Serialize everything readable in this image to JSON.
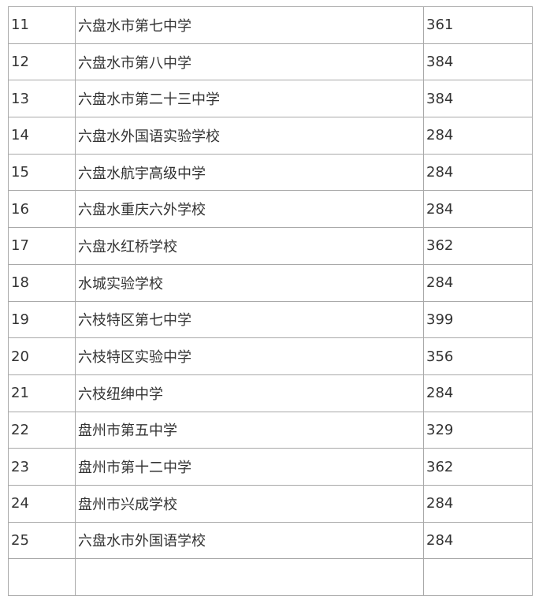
{
  "table": {
    "rows": [
      {
        "no": "11",
        "school": "六盘水市第七中学",
        "score": "361"
      },
      {
        "no": "12",
        "school": "六盘水市第八中学",
        "score": "384"
      },
      {
        "no": "13",
        "school": "六盘水市第二十三中学",
        "score": "384"
      },
      {
        "no": "14",
        "school": "六盘水外国语实验学校",
        "score": "284"
      },
      {
        "no": "15",
        "school": "六盘水航宇高级中学",
        "score": "284"
      },
      {
        "no": "16",
        "school": "六盘水重庆六外学校",
        "score": "284"
      },
      {
        "no": "17",
        "school": "六盘水红桥学校",
        "score": "362"
      },
      {
        "no": "18",
        "school": "水城实验学校",
        "score": "284"
      },
      {
        "no": "19",
        "school": "六枝特区第七中学",
        "score": "399"
      },
      {
        "no": "20",
        "school": "六枝特区实验中学",
        "score": "356"
      },
      {
        "no": "21",
        "school": "六枝纽绅中学",
        "score": "284"
      },
      {
        "no": "22",
        "school": "盘州市第五中学",
        "score": "329"
      },
      {
        "no": "23",
        "school": "盘州市第十二中学",
        "score": "362"
      },
      {
        "no": "24",
        "school": "盘州市兴成学校",
        "score": "284"
      },
      {
        "no": "25",
        "school": "六盘水市外国语学校",
        "score": "284"
      }
    ]
  }
}
